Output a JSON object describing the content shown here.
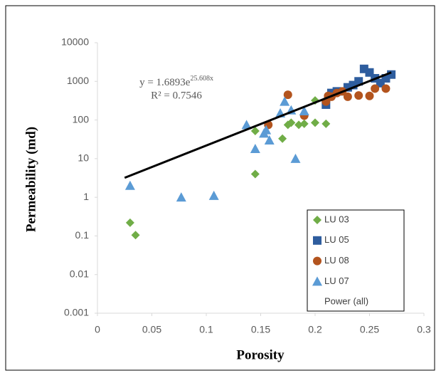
{
  "chart_data": {
    "type": "scatter",
    "x_label": "Porosity",
    "y_label": "Permeability (md)",
    "xlim": [
      0,
      0.3
    ],
    "xticks": [
      0,
      0.05,
      0.1,
      0.15,
      0.2,
      0.25,
      0.3
    ],
    "ylim": [
      0.001,
      10000
    ],
    "yticks": [
      0.001,
      0.01,
      0.1,
      1,
      10,
      100,
      1000,
      10000
    ],
    "ylog": true,
    "grid": false,
    "legend": "lower right",
    "annotation": {
      "equation": "y = 1.6893e",
      "exponent": "25.608x",
      "r2": "R² = 0.7546"
    },
    "series": [
      {
        "name": "LU 03",
        "color": "#70ad47",
        "marker": "diamond",
        "x": [
          0.03,
          0.035,
          0.145,
          0.145,
          0.17,
          0.175,
          0.178,
          0.185,
          0.19,
          0.2,
          0.2,
          0.21
        ],
        "values": [
          0.22,
          0.105,
          52,
          4,
          33,
          75,
          85,
          75,
          80,
          85,
          320,
          80
        ]
      },
      {
        "name": "LU 05",
        "color": "#2e5d9e",
        "marker": "square",
        "x": [
          0.21,
          0.215,
          0.22,
          0.23,
          0.235,
          0.24,
          0.245,
          0.25,
          0.255,
          0.26,
          0.265,
          0.27
        ],
        "values": [
          250,
          500,
          550,
          700,
          800,
          1000,
          2100,
          1700,
          1200,
          900,
          1200,
          1500
        ]
      },
      {
        "name": "LU 08",
        "color": "#b3541e",
        "marker": "circle",
        "x": [
          0.157,
          0.175,
          0.19,
          0.21,
          0.212,
          0.215,
          0.22,
          0.225,
          0.23,
          0.24,
          0.25,
          0.255,
          0.265
        ],
        "values": [
          75,
          450,
          130,
          300,
          420,
          400,
          500,
          550,
          400,
          430,
          420,
          650,
          650
        ]
      },
      {
        "name": "LU 07",
        "color": "#5b9bd5",
        "marker": "triangle",
        "x": [
          0.03,
          0.077,
          0.107,
          0.137,
          0.145,
          0.153,
          0.155,
          0.158,
          0.168,
          0.172,
          0.178,
          0.182,
          0.19
        ],
        "values": [
          2,
          1,
          1.1,
          75,
          18,
          45,
          55,
          30,
          150,
          300,
          180,
          10,
          170
        ]
      },
      {
        "name": "Power (all)",
        "color": "#000000",
        "marker": "line",
        "x": [
          0.025,
          0.27
        ],
        "values": [
          3.2,
          1700
        ]
      }
    ]
  }
}
